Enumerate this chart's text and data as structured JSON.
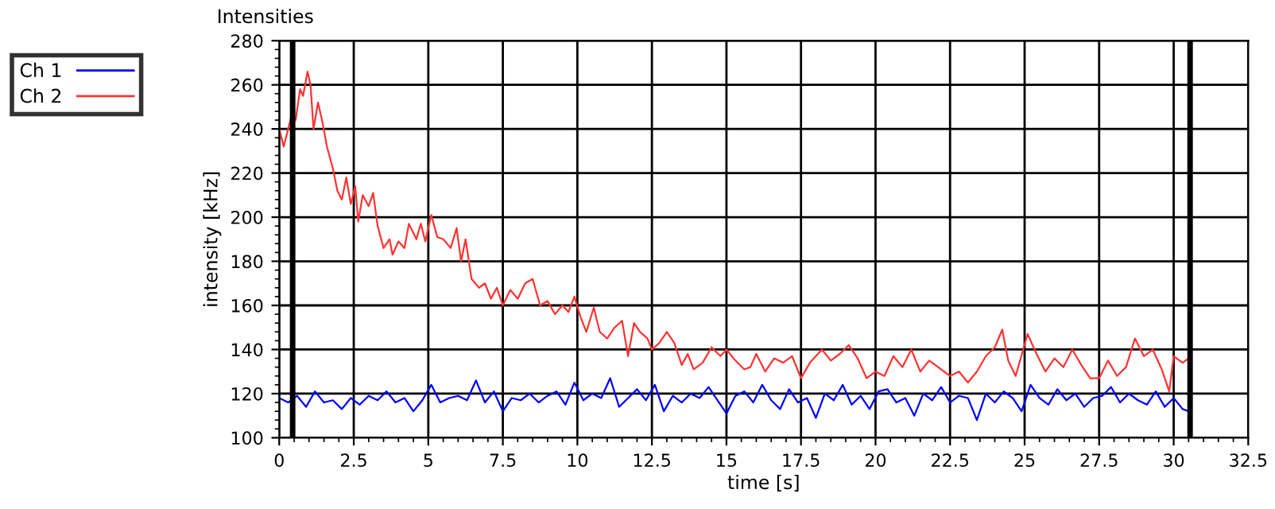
{
  "chart_data": {
    "type": "line",
    "title": "Intensities",
    "xlabel": "time [s]",
    "ylabel": "intensity [kHz]",
    "xlim": [
      0,
      32.5
    ],
    "xticks": [
      0,
      {
        "value": 2.5,
        "label": "2.5"
      },
      5,
      {
        "value": 7.5,
        "label": "7.5"
      },
      10,
      {
        "value": 12.5,
        "label": "12.5"
      },
      15,
      {
        "value": 17.5,
        "label": "17.5"
      },
      20,
      {
        "value": 22.5,
        "label": "22.5"
      },
      25,
      {
        "value": 27.5,
        "label": "27.5"
      },
      30,
      {
        "value": 32.5,
        "label": "32.5"
      }
    ],
    "ylim": [
      100,
      280
    ],
    "yticks": [
      100,
      120,
      140,
      160,
      180,
      200,
      220,
      240,
      260,
      280
    ],
    "grid": true,
    "legend": "top left",
    "line_style": "solid",
    "marker": "none",
    "ref_lines": [
      {
        "axis": "x",
        "value": 0.45,
        "color": "#000000"
      },
      {
        "axis": "x",
        "value": 30.55,
        "color": "#000000"
      }
    ],
    "series": [
      {
        "name": "Ch 1",
        "color": "#0000ff",
        "x": [
          0,
          0.3,
          0.6,
          0.9,
          1.2,
          1.5,
          1.8,
          2.1,
          2.4,
          2.7,
          3.0,
          3.3,
          3.6,
          3.9,
          4.2,
          4.5,
          4.8,
          5.1,
          5.4,
          5.7,
          6.0,
          6.3,
          6.6,
          6.9,
          7.2,
          7.5,
          7.8,
          8.1,
          8.4,
          8.7,
          9.0,
          9.3,
          9.6,
          9.9,
          10.2,
          10.5,
          10.8,
          11.1,
          11.4,
          11.7,
          12.0,
          12.3,
          12.6,
          12.9,
          13.2,
          13.5,
          13.8,
          14.1,
          14.4,
          14.7,
          15.0,
          15.3,
          15.6,
          15.9,
          16.2,
          16.5,
          16.8,
          17.1,
          17.4,
          17.7,
          18.0,
          18.3,
          18.6,
          18.9,
          19.2,
          19.5,
          19.8,
          20.1,
          20.4,
          20.7,
          21.0,
          21.3,
          21.6,
          21.9,
          22.2,
          22.5,
          22.8,
          23.1,
          23.4,
          23.7,
          24.0,
          24.3,
          24.6,
          24.9,
          25.2,
          25.5,
          25.8,
          26.1,
          26.4,
          26.7,
          27.0,
          27.3,
          27.6,
          27.9,
          28.2,
          28.5,
          28.8,
          29.1,
          29.4,
          29.7,
          30.0,
          30.3,
          30.5
        ],
        "values": [
          118,
          116,
          119,
          114,
          121,
          116,
          117,
          113,
          118,
          115,
          119,
          117,
          121,
          116,
          118,
          112,
          117,
          124,
          116,
          118,
          119,
          117,
          126,
          116,
          121,
          112,
          118,
          117,
          120,
          116,
          119,
          121,
          115,
          125,
          117,
          120,
          118,
          127,
          114,
          118,
          122,
          117,
          124,
          112,
          119,
          116,
          120,
          118,
          123,
          117,
          111,
          119,
          121,
          116,
          124,
          117,
          113,
          122,
          116,
          118,
          109,
          120,
          117,
          124,
          115,
          119,
          113,
          121,
          122,
          116,
          118,
          110,
          120,
          117,
          123,
          116,
          119,
          118,
          108,
          120,
          116,
          121,
          118,
          112,
          124,
          118,
          115,
          122,
          117,
          120,
          114,
          118,
          119,
          123,
          116,
          120,
          117,
          115,
          121,
          114,
          118,
          113,
          112
        ]
      },
      {
        "name": "Ch 2",
        "color": "#ff3333",
        "x": [
          0,
          0.15,
          0.3,
          0.45,
          0.55,
          0.7,
          0.8,
          0.95,
          1.05,
          1.15,
          1.3,
          1.45,
          1.6,
          1.8,
          1.95,
          2.1,
          2.25,
          2.4,
          2.55,
          2.65,
          2.8,
          3.0,
          3.15,
          3.3,
          3.5,
          3.7,
          3.8,
          4.0,
          4.2,
          4.35,
          4.6,
          4.75,
          4.9,
          5.1,
          5.3,
          5.5,
          5.75,
          5.95,
          6.1,
          6.25,
          6.45,
          6.7,
          6.9,
          7.1,
          7.3,
          7.5,
          7.75,
          8.0,
          8.25,
          8.5,
          8.75,
          9.0,
          9.25,
          9.5,
          9.7,
          9.9,
          10.1,
          10.3,
          10.55,
          10.75,
          11.0,
          11.25,
          11.5,
          11.7,
          11.9,
          12.1,
          12.35,
          12.5,
          12.75,
          13.0,
          13.25,
          13.5,
          13.7,
          13.9,
          14.2,
          14.5,
          14.8,
          15.0,
          15.3,
          15.6,
          15.8,
          16.0,
          16.3,
          16.6,
          16.9,
          17.2,
          17.5,
          17.8,
          18.2,
          18.5,
          18.8,
          19.1,
          19.4,
          19.7,
          20.0,
          20.3,
          20.6,
          20.9,
          21.2,
          21.5,
          21.8,
          22.1,
          22.5,
          22.8,
          23.1,
          23.4,
          23.7,
          24.0,
          24.25,
          24.45,
          24.7,
          25.1,
          25.4,
          25.7,
          26.0,
          26.3,
          26.6,
          26.9,
          27.2,
          27.5,
          27.8,
          28.1,
          28.4,
          28.7,
          29.0,
          29.3,
          29.6,
          29.85,
          30.0,
          30.3,
          30.5
        ],
        "values": [
          240,
          232,
          240,
          248,
          244,
          258,
          255,
          266,
          260,
          240,
          252,
          243,
          232,
          222,
          212,
          208,
          218,
          206,
          214,
          198,
          210,
          205,
          211,
          196,
          186,
          190,
          183,
          189,
          186,
          197,
          190,
          197,
          189,
          201,
          191,
          190,
          186,
          195,
          180,
          190,
          172,
          168,
          170,
          163,
          168,
          160,
          167,
          163,
          170,
          172,
          160,
          162,
          156,
          160,
          157,
          164,
          155,
          148,
          159,
          148,
          145,
          150,
          153,
          137,
          152,
          148,
          145,
          140,
          143,
          148,
          143,
          133,
          138,
          131,
          134,
          141,
          137,
          140,
          135,
          131,
          132,
          138,
          130,
          136,
          134,
          137,
          127,
          134,
          140,
          135,
          138,
          142,
          136,
          127,
          130,
          128,
          137,
          132,
          140,
          130,
          135,
          132,
          128,
          130,
          125,
          130,
          137,
          141,
          149,
          135,
          128,
          147,
          138,
          130,
          136,
          132,
          140,
          133,
          127,
          127,
          135,
          128,
          132,
          145,
          137,
          140,
          131,
          121,
          137,
          134,
          136
        ]
      }
    ]
  }
}
